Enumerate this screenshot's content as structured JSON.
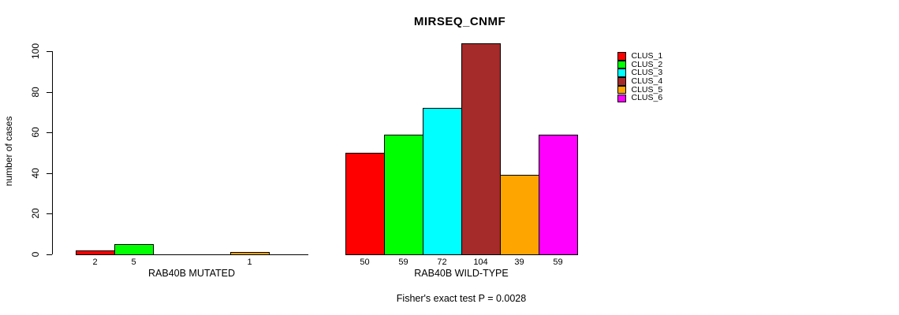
{
  "title": "MIRSEQ_CNMF",
  "footnote": "Fisher's exact test P = 0.0028",
  "y_axis": {
    "label": "number of cases",
    "ticks": [
      0,
      20,
      40,
      60,
      80,
      100
    ]
  },
  "legend": {
    "items": [
      {
        "label": "CLUS_1",
        "color": "#FF0000"
      },
      {
        "label": "CLUS_2",
        "color": "#00FF00"
      },
      {
        "label": "CLUS_3",
        "color": "#00FFFF"
      },
      {
        "label": "CLUS_4",
        "color": "#A52A2A"
      },
      {
        "label": "CLUS_5",
        "color": "#FFA500"
      },
      {
        "label": "CLUS_6",
        "color": "#FF00FF"
      }
    ]
  },
  "chart_data": {
    "type": "bar",
    "title": "MIRSEQ_CNMF",
    "ylabel": "number of cases",
    "xlabel": "",
    "ylim": [
      0,
      104
    ],
    "grid": false,
    "legend_position": "right",
    "categories": [
      "RAB40B MUTATED",
      "RAB40B WILD-TYPE"
    ],
    "series": [
      {
        "name": "CLUS_1",
        "color": "#FF0000",
        "values": [
          2,
          50
        ]
      },
      {
        "name": "CLUS_2",
        "color": "#00FF00",
        "values": [
          5,
          59
        ]
      },
      {
        "name": "CLUS_3",
        "color": "#00FFFF",
        "values": [
          0,
          72
        ]
      },
      {
        "name": "CLUS_4",
        "color": "#A52A2A",
        "values": [
          0,
          104
        ]
      },
      {
        "name": "CLUS_5",
        "color": "#FFA500",
        "values": [
          1,
          39
        ]
      },
      {
        "name": "CLUS_6",
        "color": "#FF00FF",
        "values": [
          0,
          59
        ]
      }
    ],
    "bar_value_labels": [
      [
        "2",
        "5",
        "",
        "",
        "1",
        ""
      ],
      [
        "50",
        "59",
        "72",
        "104",
        "39",
        "59"
      ]
    ],
    "annotation": "Fisher's exact test P = 0.0028"
  }
}
